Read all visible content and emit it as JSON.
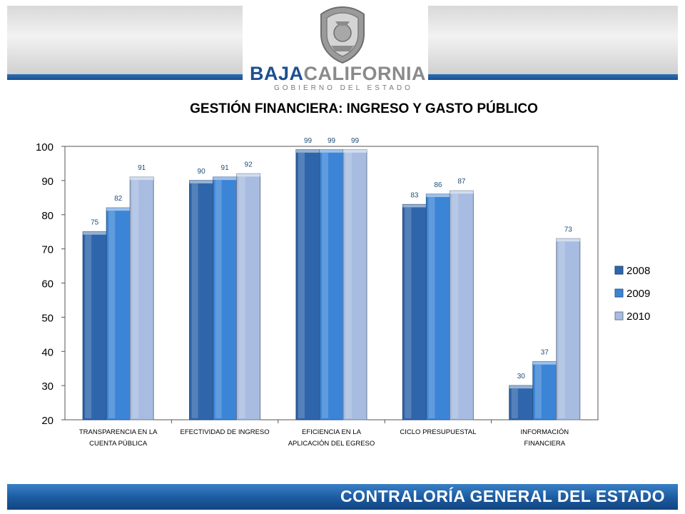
{
  "header": {
    "brand_part1": "BAJA",
    "brand_part2": "CALIFORNIA",
    "brand_subtitle": "GOBIERNO DEL ESTADO"
  },
  "footer": {
    "text": "CONTRALORÍA GENERAL DEL ESTADO"
  },
  "colors": {
    "header_blue": "#1d4f91",
    "footer_blue": "#1b5a9f"
  },
  "chart_data": {
    "type": "bar",
    "title": "GESTIÓN FINANCIERA: INGRESO Y GASTO PÚBLICO",
    "categories": [
      [
        "TRANSPARENCIA EN LA",
        "CUENTA PÚBLICA"
      ],
      [
        "EFECTIVIDAD DE INGRESO"
      ],
      [
        "EFICIENCIA EN LA",
        "APLICACIÓN DEL EGRESO"
      ],
      [
        "CICLO PRESUPUESTAL"
      ],
      [
        "INFORMACIÓN",
        "FINANCIERA"
      ]
    ],
    "series": [
      {
        "name": "2008",
        "values": [
          75,
          90,
          99,
          83,
          30
        ],
        "color": "#2f66ab"
      },
      {
        "name": "2009",
        "values": [
          82,
          91,
          99,
          86,
          37
        ],
        "color": "#3c85d6"
      },
      {
        "name": "2010",
        "values": [
          91,
          92,
          99,
          87,
          73
        ],
        "color": "#a7bce0"
      }
    ],
    "ylim": [
      20,
      100
    ],
    "yticks": [
      20,
      30,
      40,
      50,
      60,
      70,
      80,
      90,
      100
    ],
    "legend": "right",
    "grid": false,
    "data_labels": true
  }
}
